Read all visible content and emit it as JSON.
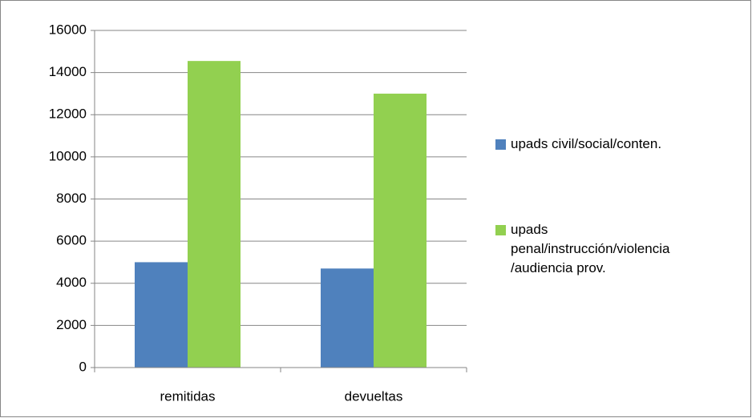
{
  "chart_data": {
    "type": "bar",
    "categories": [
      "remitidas",
      "devueltas"
    ],
    "series": [
      {
        "name": "upads civil/social/conten.",
        "color": "#4f81bd",
        "values": [
          5000,
          4700
        ]
      },
      {
        "name": "upads penal/instrucción/violencia/audiencia prov.",
        "color": "#92d050",
        "values": [
          14550,
          13000
        ]
      }
    ],
    "ylim": [
      0,
      16000
    ],
    "yticks": [
      0,
      2000,
      4000,
      6000,
      8000,
      10000,
      12000,
      14000,
      16000
    ],
    "grid": true,
    "legend": "right"
  }
}
